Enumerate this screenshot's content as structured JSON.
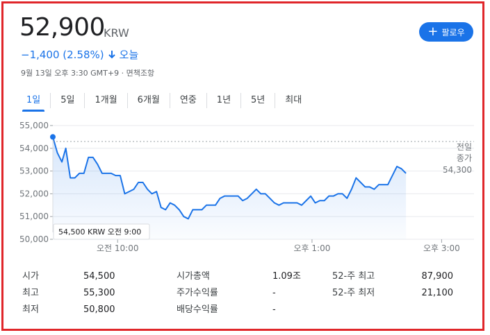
{
  "quote": {
    "price": "52,900",
    "currency": "KRW",
    "change": "−1,400 (2.58%)",
    "change_period": "오늘",
    "timestamp": "9월 13일 오후 3:30 GMT+9 · 면책조항",
    "follow_label": "팔로우"
  },
  "tabs": [
    "1일",
    "5일",
    "1개월",
    "6개월",
    "연중",
    "1년",
    "5년",
    "최대"
  ],
  "active_tab": 0,
  "colors": {
    "accent": "#1a73e8",
    "negative": "#1a73e8",
    "frame": "#e0262a"
  },
  "chart_data": {
    "type": "area",
    "y_ticks": [
      "55,000",
      "54,000",
      "53,000",
      "52,000",
      "51,000",
      "50,000"
    ],
    "ylim": [
      50000,
      55000
    ],
    "x_tick_labels": [
      "오전 10:00",
      "오후 1:00",
      "오후 3:00"
    ],
    "x_tick_hours": [
      10,
      13,
      15
    ],
    "x_range_hours": [
      9.0,
      15.5
    ],
    "previous_close_label": [
      "전일",
      "종가"
    ],
    "previous_close_value": "54,300",
    "previous_close": 54300,
    "tooltip": "54,500 KRW  오전 9:00",
    "series": [
      [
        9.0,
        54500
      ],
      [
        9.07,
        53800
      ],
      [
        9.14,
        53400
      ],
      [
        9.2,
        54000
      ],
      [
        9.27,
        52700
      ],
      [
        9.34,
        52700
      ],
      [
        9.41,
        52900
      ],
      [
        9.48,
        52900
      ],
      [
        9.55,
        53600
      ],
      [
        9.62,
        53600
      ],
      [
        9.69,
        53300
      ],
      [
        9.76,
        52900
      ],
      [
        9.83,
        52900
      ],
      [
        9.9,
        52900
      ],
      [
        9.97,
        52800
      ],
      [
        10.04,
        52800
      ],
      [
        10.11,
        52000
      ],
      [
        10.18,
        52100
      ],
      [
        10.25,
        52200
      ],
      [
        10.32,
        52500
      ],
      [
        10.39,
        52500
      ],
      [
        10.46,
        52200
      ],
      [
        10.53,
        52000
      ],
      [
        10.6,
        52100
      ],
      [
        10.67,
        51400
      ],
      [
        10.74,
        51300
      ],
      [
        10.81,
        51600
      ],
      [
        10.88,
        51500
      ],
      [
        10.95,
        51300
      ],
      [
        11.02,
        51000
      ],
      [
        11.09,
        50900
      ],
      [
        11.16,
        51300
      ],
      [
        11.23,
        51300
      ],
      [
        11.3,
        51300
      ],
      [
        11.37,
        51500
      ],
      [
        11.44,
        51500
      ],
      [
        11.51,
        51500
      ],
      [
        11.58,
        51800
      ],
      [
        11.65,
        51900
      ],
      [
        11.72,
        51900
      ],
      [
        11.79,
        51900
      ],
      [
        11.86,
        51900
      ],
      [
        11.93,
        51700
      ],
      [
        12.0,
        51800
      ],
      [
        12.07,
        52000
      ],
      [
        12.14,
        52200
      ],
      [
        12.21,
        52000
      ],
      [
        12.28,
        52000
      ],
      [
        12.35,
        51800
      ],
      [
        12.42,
        51600
      ],
      [
        12.49,
        51500
      ],
      [
        12.56,
        51600
      ],
      [
        12.63,
        51600
      ],
      [
        12.7,
        51600
      ],
      [
        12.77,
        51600
      ],
      [
        12.84,
        51500
      ],
      [
        12.91,
        51700
      ],
      [
        12.98,
        51900
      ],
      [
        13.05,
        51600
      ],
      [
        13.12,
        51700
      ],
      [
        13.19,
        51700
      ],
      [
        13.26,
        51900
      ],
      [
        13.33,
        51900
      ],
      [
        13.4,
        52000
      ],
      [
        13.47,
        52000
      ],
      [
        13.54,
        51800
      ],
      [
        13.61,
        52200
      ],
      [
        13.68,
        52700
      ],
      [
        13.75,
        52500
      ],
      [
        13.82,
        52300
      ],
      [
        13.89,
        52300
      ],
      [
        13.96,
        52200
      ],
      [
        14.03,
        52400
      ],
      [
        14.1,
        52400
      ],
      [
        14.17,
        52400
      ],
      [
        14.24,
        52800
      ],
      [
        14.31,
        53200
      ],
      [
        14.38,
        53100
      ],
      [
        14.45,
        52900
      ]
    ]
  },
  "stats": {
    "rows": [
      [
        [
          "시가",
          "54,500"
        ],
        [
          "시가총액",
          "1.09조"
        ],
        [
          "52-주 최고",
          "87,900"
        ]
      ],
      [
        [
          "최고",
          "55,300"
        ],
        [
          "주가수익률",
          "-"
        ],
        [
          "52-주 최저",
          "21,100"
        ]
      ],
      [
        [
          "최저",
          "50,800"
        ],
        [
          "배당수익률",
          "-"
        ],
        [
          "",
          ""
        ]
      ]
    ]
  }
}
